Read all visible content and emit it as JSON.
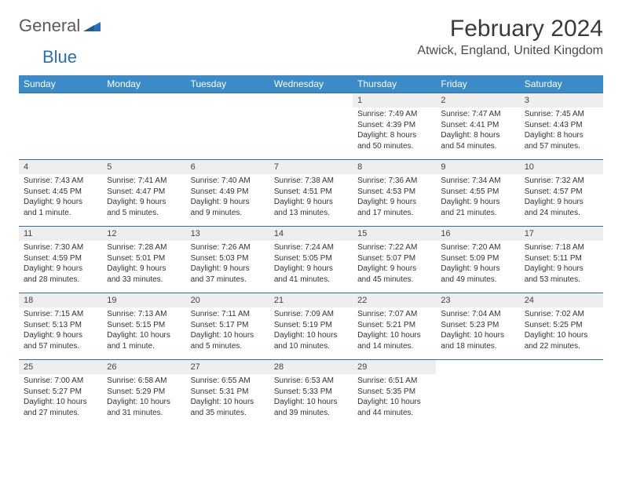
{
  "logo": {
    "text_general": "General",
    "text_blue": "Blue",
    "mark_color": "#2a6fb5"
  },
  "header": {
    "month_title": "February 2024",
    "location": "Atwick, England, United Kingdom"
  },
  "colors": {
    "header_bg": "#3b8bc9",
    "header_text": "#ffffff",
    "daynum_bg": "#eeeeee",
    "rule": "#2a6fb5",
    "body_text": "#333333"
  },
  "weekdays": [
    "Sunday",
    "Monday",
    "Tuesday",
    "Wednesday",
    "Thursday",
    "Friday",
    "Saturday"
  ],
  "weeks": [
    [
      null,
      null,
      null,
      null,
      {
        "n": "1",
        "sr": "Sunrise: 7:49 AM",
        "ss": "Sunset: 4:39 PM",
        "dl": "Daylight: 8 hours and 50 minutes."
      },
      {
        "n": "2",
        "sr": "Sunrise: 7:47 AM",
        "ss": "Sunset: 4:41 PM",
        "dl": "Daylight: 8 hours and 54 minutes."
      },
      {
        "n": "3",
        "sr": "Sunrise: 7:45 AM",
        "ss": "Sunset: 4:43 PM",
        "dl": "Daylight: 8 hours and 57 minutes."
      }
    ],
    [
      {
        "n": "4",
        "sr": "Sunrise: 7:43 AM",
        "ss": "Sunset: 4:45 PM",
        "dl": "Daylight: 9 hours and 1 minute."
      },
      {
        "n": "5",
        "sr": "Sunrise: 7:41 AM",
        "ss": "Sunset: 4:47 PM",
        "dl": "Daylight: 9 hours and 5 minutes."
      },
      {
        "n": "6",
        "sr": "Sunrise: 7:40 AM",
        "ss": "Sunset: 4:49 PM",
        "dl": "Daylight: 9 hours and 9 minutes."
      },
      {
        "n": "7",
        "sr": "Sunrise: 7:38 AM",
        "ss": "Sunset: 4:51 PM",
        "dl": "Daylight: 9 hours and 13 minutes."
      },
      {
        "n": "8",
        "sr": "Sunrise: 7:36 AM",
        "ss": "Sunset: 4:53 PM",
        "dl": "Daylight: 9 hours and 17 minutes."
      },
      {
        "n": "9",
        "sr": "Sunrise: 7:34 AM",
        "ss": "Sunset: 4:55 PM",
        "dl": "Daylight: 9 hours and 21 minutes."
      },
      {
        "n": "10",
        "sr": "Sunrise: 7:32 AM",
        "ss": "Sunset: 4:57 PM",
        "dl": "Daylight: 9 hours and 24 minutes."
      }
    ],
    [
      {
        "n": "11",
        "sr": "Sunrise: 7:30 AM",
        "ss": "Sunset: 4:59 PM",
        "dl": "Daylight: 9 hours and 28 minutes."
      },
      {
        "n": "12",
        "sr": "Sunrise: 7:28 AM",
        "ss": "Sunset: 5:01 PM",
        "dl": "Daylight: 9 hours and 33 minutes."
      },
      {
        "n": "13",
        "sr": "Sunrise: 7:26 AM",
        "ss": "Sunset: 5:03 PM",
        "dl": "Daylight: 9 hours and 37 minutes."
      },
      {
        "n": "14",
        "sr": "Sunrise: 7:24 AM",
        "ss": "Sunset: 5:05 PM",
        "dl": "Daylight: 9 hours and 41 minutes."
      },
      {
        "n": "15",
        "sr": "Sunrise: 7:22 AM",
        "ss": "Sunset: 5:07 PM",
        "dl": "Daylight: 9 hours and 45 minutes."
      },
      {
        "n": "16",
        "sr": "Sunrise: 7:20 AM",
        "ss": "Sunset: 5:09 PM",
        "dl": "Daylight: 9 hours and 49 minutes."
      },
      {
        "n": "17",
        "sr": "Sunrise: 7:18 AM",
        "ss": "Sunset: 5:11 PM",
        "dl": "Daylight: 9 hours and 53 minutes."
      }
    ],
    [
      {
        "n": "18",
        "sr": "Sunrise: 7:15 AM",
        "ss": "Sunset: 5:13 PM",
        "dl": "Daylight: 9 hours and 57 minutes."
      },
      {
        "n": "19",
        "sr": "Sunrise: 7:13 AM",
        "ss": "Sunset: 5:15 PM",
        "dl": "Daylight: 10 hours and 1 minute."
      },
      {
        "n": "20",
        "sr": "Sunrise: 7:11 AM",
        "ss": "Sunset: 5:17 PM",
        "dl": "Daylight: 10 hours and 5 minutes."
      },
      {
        "n": "21",
        "sr": "Sunrise: 7:09 AM",
        "ss": "Sunset: 5:19 PM",
        "dl": "Daylight: 10 hours and 10 minutes."
      },
      {
        "n": "22",
        "sr": "Sunrise: 7:07 AM",
        "ss": "Sunset: 5:21 PM",
        "dl": "Daylight: 10 hours and 14 minutes."
      },
      {
        "n": "23",
        "sr": "Sunrise: 7:04 AM",
        "ss": "Sunset: 5:23 PM",
        "dl": "Daylight: 10 hours and 18 minutes."
      },
      {
        "n": "24",
        "sr": "Sunrise: 7:02 AM",
        "ss": "Sunset: 5:25 PM",
        "dl": "Daylight: 10 hours and 22 minutes."
      }
    ],
    [
      {
        "n": "25",
        "sr": "Sunrise: 7:00 AM",
        "ss": "Sunset: 5:27 PM",
        "dl": "Daylight: 10 hours and 27 minutes."
      },
      {
        "n": "26",
        "sr": "Sunrise: 6:58 AM",
        "ss": "Sunset: 5:29 PM",
        "dl": "Daylight: 10 hours and 31 minutes."
      },
      {
        "n": "27",
        "sr": "Sunrise: 6:55 AM",
        "ss": "Sunset: 5:31 PM",
        "dl": "Daylight: 10 hours and 35 minutes."
      },
      {
        "n": "28",
        "sr": "Sunrise: 6:53 AM",
        "ss": "Sunset: 5:33 PM",
        "dl": "Daylight: 10 hours and 39 minutes."
      },
      {
        "n": "29",
        "sr": "Sunrise: 6:51 AM",
        "ss": "Sunset: 5:35 PM",
        "dl": "Daylight: 10 hours and 44 minutes."
      },
      null,
      null
    ]
  ]
}
